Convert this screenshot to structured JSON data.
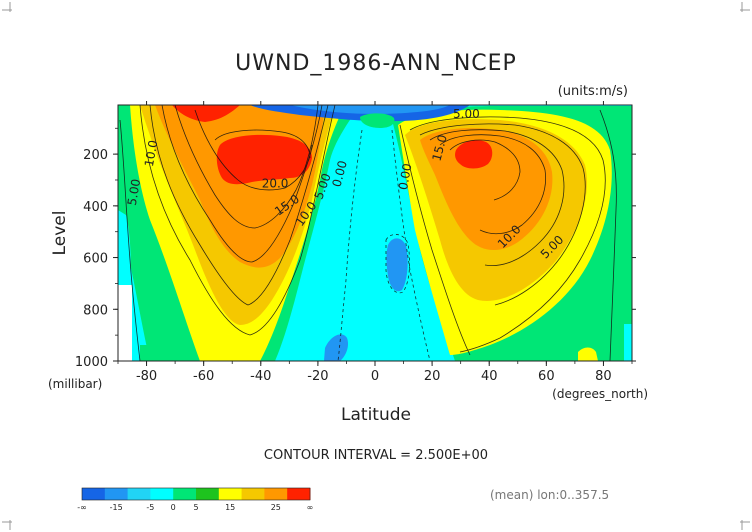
{
  "chart_data": {
    "type": "contour",
    "title": "UWND_1986-ANN_NCEP",
    "units": "(units:m/s)",
    "xlabel": "Latitude",
    "xunits": "(degrees_north)",
    "ylabel": "Level",
    "yunits": "(millibar)",
    "xlim": [
      -90,
      90
    ],
    "ylim": [
      1000,
      10
    ],
    "x_ticks": [
      -80,
      -60,
      -40,
      -20,
      0,
      20,
      40,
      60,
      80
    ],
    "y_ticks": [
      200,
      400,
      600,
      800,
      1000
    ],
    "contour_interval_text": "CONTOUR INTERVAL = 2.500E+00",
    "footer_text": "(mean) lon:0..357.5",
    "contour_labels": [
      {
        "text": "10.0",
        "lat": -77,
        "lev": 200,
        "rot": -80
      },
      {
        "text": "5.00",
        "lat": -83,
        "lev": 350,
        "rot": -80
      },
      {
        "text": "20.0",
        "lat": -35,
        "lev": 330,
        "rot": 0
      },
      {
        "text": "15.0",
        "lat": -30,
        "lev": 410,
        "rot": -35
      },
      {
        "text": "10.0",
        "lat": -23,
        "lev": 440,
        "rot": -55
      },
      {
        "text": "5.00",
        "lat": -17,
        "lev": 330,
        "rot": -70
      },
      {
        "text": "0.00",
        "lat": -11,
        "lev": 280,
        "rot": -75
      },
      {
        "text": "0.00",
        "lat": 12,
        "lev": 290,
        "rot": -80
      },
      {
        "text": "5.00",
        "lat": 32,
        "lev": 60,
        "rot": 0
      },
      {
        "text": "15.0",
        "lat": 24,
        "lev": 180,
        "rot": -75
      },
      {
        "text": "10.0",
        "lat": 48,
        "lev": 530,
        "rot": -45
      },
      {
        "text": "5.00",
        "lat": 63,
        "lev": 570,
        "rot": -45
      }
    ],
    "legend": {
      "color_bins": [
        "#1565e6",
        "#2196f3",
        "#21d4f5",
        "#00ffff",
        "#00e676",
        "#1ec31e",
        "#ffff00",
        "#f5c800",
        "#ff9800",
        "#ff2200"
      ],
      "tick_labels": [
        "-∞",
        "-15",
        "-5",
        "0",
        "5",
        "15",
        "25",
        "∞"
      ]
    }
  }
}
